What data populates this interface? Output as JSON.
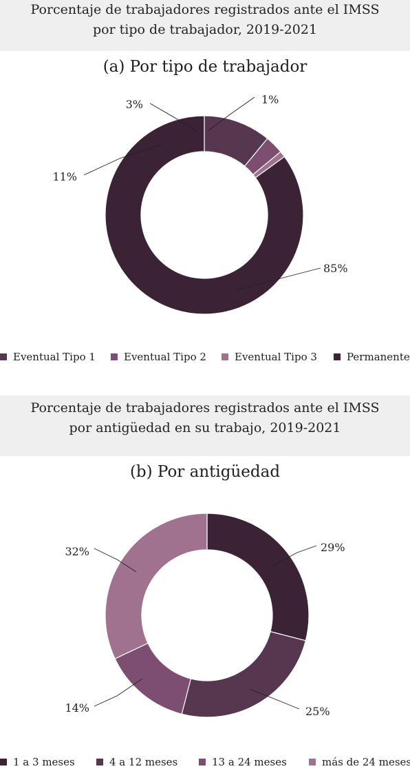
{
  "chart_data": [
    {
      "type": "pie",
      "donut": true,
      "header": [
        "Porcentaje de trabajadores registrados ante el IMSS",
        "por tipo de trabajador, 2019-2021"
      ],
      "title": "(a) Por tipo de trabajador",
      "categories": [
        "Eventual Tipo 1",
        "Eventual Tipo 2",
        "Eventual Tipo 3",
        "Permanente"
      ],
      "values": [
        11,
        3,
        1,
        85
      ],
      "labels": [
        "11%",
        "3%",
        "1%",
        "85%"
      ],
      "colors": [
        "#57364f",
        "#7e4e72",
        "#a0728f",
        "#3b2234"
      ],
      "legend_position": "bottom"
    },
    {
      "type": "pie",
      "donut": true,
      "header": [
        "Porcentaje de trabajadores registrados ante el IMSS",
        "por antigüedad en su trabajo, 2019-2021"
      ],
      "title": "(b) Por antigüedad",
      "categories": [
        "1 a 3 meses",
        "4 a 12 meses",
        "13 a 24 meses",
        "más de 24 meses"
      ],
      "values": [
        29,
        25,
        14,
        32
      ],
      "labels": [
        "29%",
        "25%",
        "14%",
        "32%"
      ],
      "colors": [
        "#3b2234",
        "#57364f",
        "#7e4e72",
        "#a0728f"
      ],
      "legend_position": "bottom"
    }
  ]
}
